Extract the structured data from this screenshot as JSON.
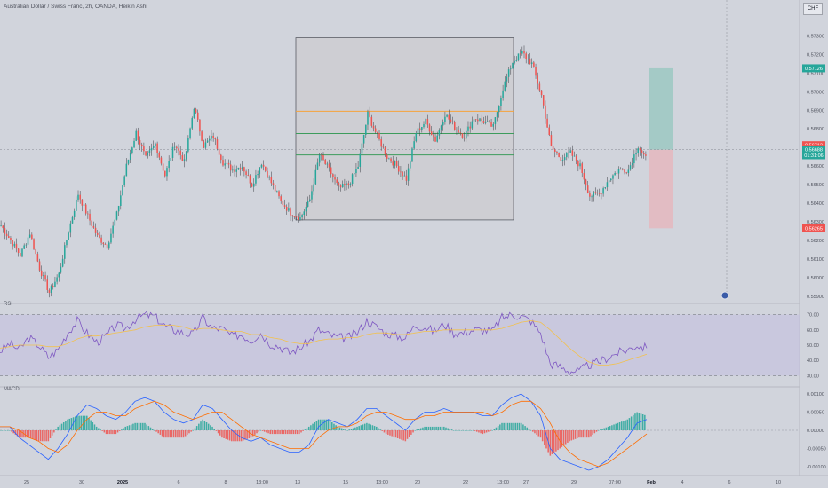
{
  "header": {
    "title": "Australian Dollar / Swiss Franc, 2h, OANDA, Heikin Ashi",
    "currency_button": "CHF"
  },
  "colors": {
    "bg": "#d1d4dc",
    "up": "#26a69a",
    "down": "#ef5350",
    "ink": "#131722",
    "rsi": "#7e57c2",
    "rsi_ma": "#f2c14e",
    "macd": "#2962ff",
    "signal": "#ff6d00",
    "orange_line": "#f6a33b",
    "green_line": "#3d9c5c",
    "target_zone": "#9fc9c3",
    "stop_zone": "#e3b9c0"
  },
  "chart_data": [
    {
      "type": "candlestick",
      "title": "Australian Dollar / Swiss Franc, 2h, OANDA, Heikin Ashi",
      "y_range": [
        0.5588,
        0.5735
      ],
      "y_ticks": [
        "0.57300",
        "0.57200",
        "0.57100",
        "0.57000",
        "0.56900",
        "0.56800",
        "0.56700",
        "0.56600",
        "0.56500",
        "0.56400",
        "0.56300",
        "0.56200",
        "0.56100",
        "0.56000",
        "0.55900"
      ],
      "x_ticks": [
        "25",
        "30",
        "2025",
        "6",
        "8",
        "13:00",
        "13",
        "15",
        "13:00",
        "20",
        "22",
        "13:00",
        "27",
        "29",
        "07:00",
        "Feb",
        "4",
        "6",
        "10"
      ],
      "price_path": [
        0.5628,
        0.562,
        0.5612,
        0.5624,
        0.5605,
        0.5592,
        0.5602,
        0.5625,
        0.5645,
        0.5633,
        0.5622,
        0.5617,
        0.5634,
        0.566,
        0.5678,
        0.5664,
        0.5672,
        0.5655,
        0.5672,
        0.5662,
        0.5692,
        0.5671,
        0.5676,
        0.5662,
        0.5658,
        0.566,
        0.565,
        0.5662,
        0.5651,
        0.5641,
        0.5635,
        0.5632,
        0.5642,
        0.5666,
        0.5658,
        0.5648,
        0.565,
        0.566,
        0.5688,
        0.5676,
        0.5665,
        0.566,
        0.5653,
        0.5678,
        0.5684,
        0.5674,
        0.5688,
        0.5681,
        0.5676,
        0.5686,
        0.5684,
        0.5681,
        0.5702,
        0.5716,
        0.5721,
        0.5715,
        0.5698,
        0.567,
        0.5664,
        0.5667,
        0.566,
        0.5644,
        0.5645,
        0.5653,
        0.5658,
        0.5658,
        0.5671,
        0.5662
      ],
      "volatility": 0.00035,
      "annotations": [
        {
          "type": "range_box",
          "top": 0.5729,
          "bottom": 0.5631
        },
        {
          "type": "hline",
          "value": 0.56895,
          "color": "orange"
        },
        {
          "type": "hline",
          "value": 0.56775,
          "color": "green"
        },
        {
          "type": "hline",
          "value": 0.5666,
          "color": "green"
        },
        {
          "type": "position_target",
          "from": 0.56688,
          "to": 0.57126
        },
        {
          "type": "position_stop",
          "from": 0.56688,
          "to": 0.56265
        }
      ],
      "price_labels": [
        {
          "text": "0.57126",
          "value": 0.57126,
          "color": "#26a69a"
        },
        {
          "text": "0.56712",
          "value": 0.56712,
          "color": "#ef5350"
        },
        {
          "text": "0.56693",
          "value": 0.56693,
          "color": "#ef5350"
        },
        {
          "text": "0.56688",
          "value": 0.56688,
          "color": "#26a69a"
        },
        {
          "text": "01:31:06",
          "value": 0.56658,
          "color": "#26a69a"
        },
        {
          "text": "0.56265",
          "value": 0.56265,
          "color": "#ef5350"
        }
      ]
    },
    {
      "type": "line",
      "title": "RSI",
      "y_range": [
        25,
        75
      ],
      "y_ticks": [
        "70.00",
        "60.00",
        "50.00",
        "40.00",
        "30.00"
      ],
      "bands": {
        "upper": 70,
        "lower": 30
      },
      "series": [
        {
          "role": "rsi",
          "values": [
            46,
            51,
            47,
            55,
            50,
            42,
            47,
            58,
            66,
            58,
            52,
            56,
            63,
            61,
            67,
            70,
            69,
            63,
            60,
            58,
            57,
            68,
            61,
            61,
            56,
            57,
            53,
            58,
            51,
            49,
            45,
            48,
            52,
            60,
            57,
            55,
            55,
            58,
            66,
            62,
            58,
            56,
            55,
            63,
            62,
            59,
            64,
            58,
            58,
            60,
            60,
            59,
            68,
            70,
            69,
            66,
            58,
            38,
            36,
            33,
            33,
            37,
            39,
            42,
            45,
            47,
            50,
            48
          ]
        },
        {
          "role": "ma",
          "values": [
            48,
            49,
            50,
            50,
            50,
            49,
            49,
            51,
            54,
            56,
            56,
            57,
            58,
            59,
            60,
            62,
            63,
            63,
            63,
            62,
            60,
            61,
            61,
            60,
            59,
            59,
            57,
            57,
            55,
            54,
            52,
            51,
            51,
            53,
            54,
            54,
            55,
            55,
            57,
            58,
            58,
            57,
            57,
            58,
            59,
            59,
            60,
            60,
            60,
            60,
            60,
            60,
            61,
            63,
            65,
            66,
            65,
            60,
            54,
            48,
            43,
            39,
            37,
            37,
            38,
            40,
            42,
            44
          ]
        }
      ]
    },
    {
      "type": "bar+line",
      "title": "MACD",
      "y_range": [
        -0.0011,
        0.0011
      ],
      "y_ticks": [
        "0.00100",
        "0.00050",
        "0.00000",
        "-0.00050",
        "-0.00100"
      ],
      "series": [
        {
          "role": "macd",
          "values": [
            0.0001,
            0.0001,
            -0.0002,
            -0.0004,
            -0.0006,
            -0.0008,
            -0.0005,
            -0.0001,
            0.0004,
            0.0007,
            0.0006,
            0.0004,
            0.0003,
            0.0005,
            0.0008,
            0.0009,
            0.0008,
            0.0005,
            0.0003,
            0.0002,
            0.0003,
            0.0007,
            0.0006,
            0.0003,
            0.0,
            -0.0002,
            -0.0003,
            -0.0002,
            -0.0004,
            -0.0005,
            -0.0006,
            -0.0006,
            -0.0004,
            0.0001,
            0.0003,
            0.0002,
            0.0001,
            0.0003,
            0.0006,
            0.0006,
            0.0004,
            0.0002,
            0.0,
            0.0003,
            0.0005,
            0.0005,
            0.0006,
            0.0005,
            0.0005,
            0.0005,
            0.0004,
            0.0004,
            0.0007,
            0.0009,
            0.001,
            0.0008,
            0.0004,
            -0.0005,
            -0.0008,
            -0.0009,
            -0.001,
            -0.0011,
            -0.001,
            -0.0008,
            -0.0005,
            -0.0002,
            0.0002,
            0.0003
          ]
        },
        {
          "role": "signal",
          "values": [
            0.0001,
            0.0001,
            0.0,
            -0.0002,
            -0.0003,
            -0.0005,
            -0.0006,
            -0.0004,
            0.0,
            0.0003,
            0.0005,
            0.0005,
            0.0004,
            0.0004,
            0.0006,
            0.0007,
            0.0008,
            0.0007,
            0.0005,
            0.0004,
            0.0003,
            0.0004,
            0.0005,
            0.0005,
            0.0003,
            0.0001,
            -0.0001,
            -0.0002,
            -0.0003,
            -0.0004,
            -0.0005,
            -0.0005,
            -0.0005,
            -0.0002,
            0.0,
            0.0001,
            0.0001,
            0.0002,
            0.0004,
            0.0005,
            0.0005,
            0.0004,
            0.0003,
            0.0003,
            0.0004,
            0.0004,
            0.0005,
            0.0005,
            0.0005,
            0.0005,
            0.0005,
            0.0004,
            0.0005,
            0.0007,
            0.0008,
            0.0008,
            0.0006,
            0.0002,
            -0.0003,
            -0.0006,
            -0.0008,
            -0.0009,
            -0.001,
            -0.0009,
            -0.0007,
            -0.0005,
            -0.0003,
            -0.0001
          ]
        }
      ]
    }
  ]
}
